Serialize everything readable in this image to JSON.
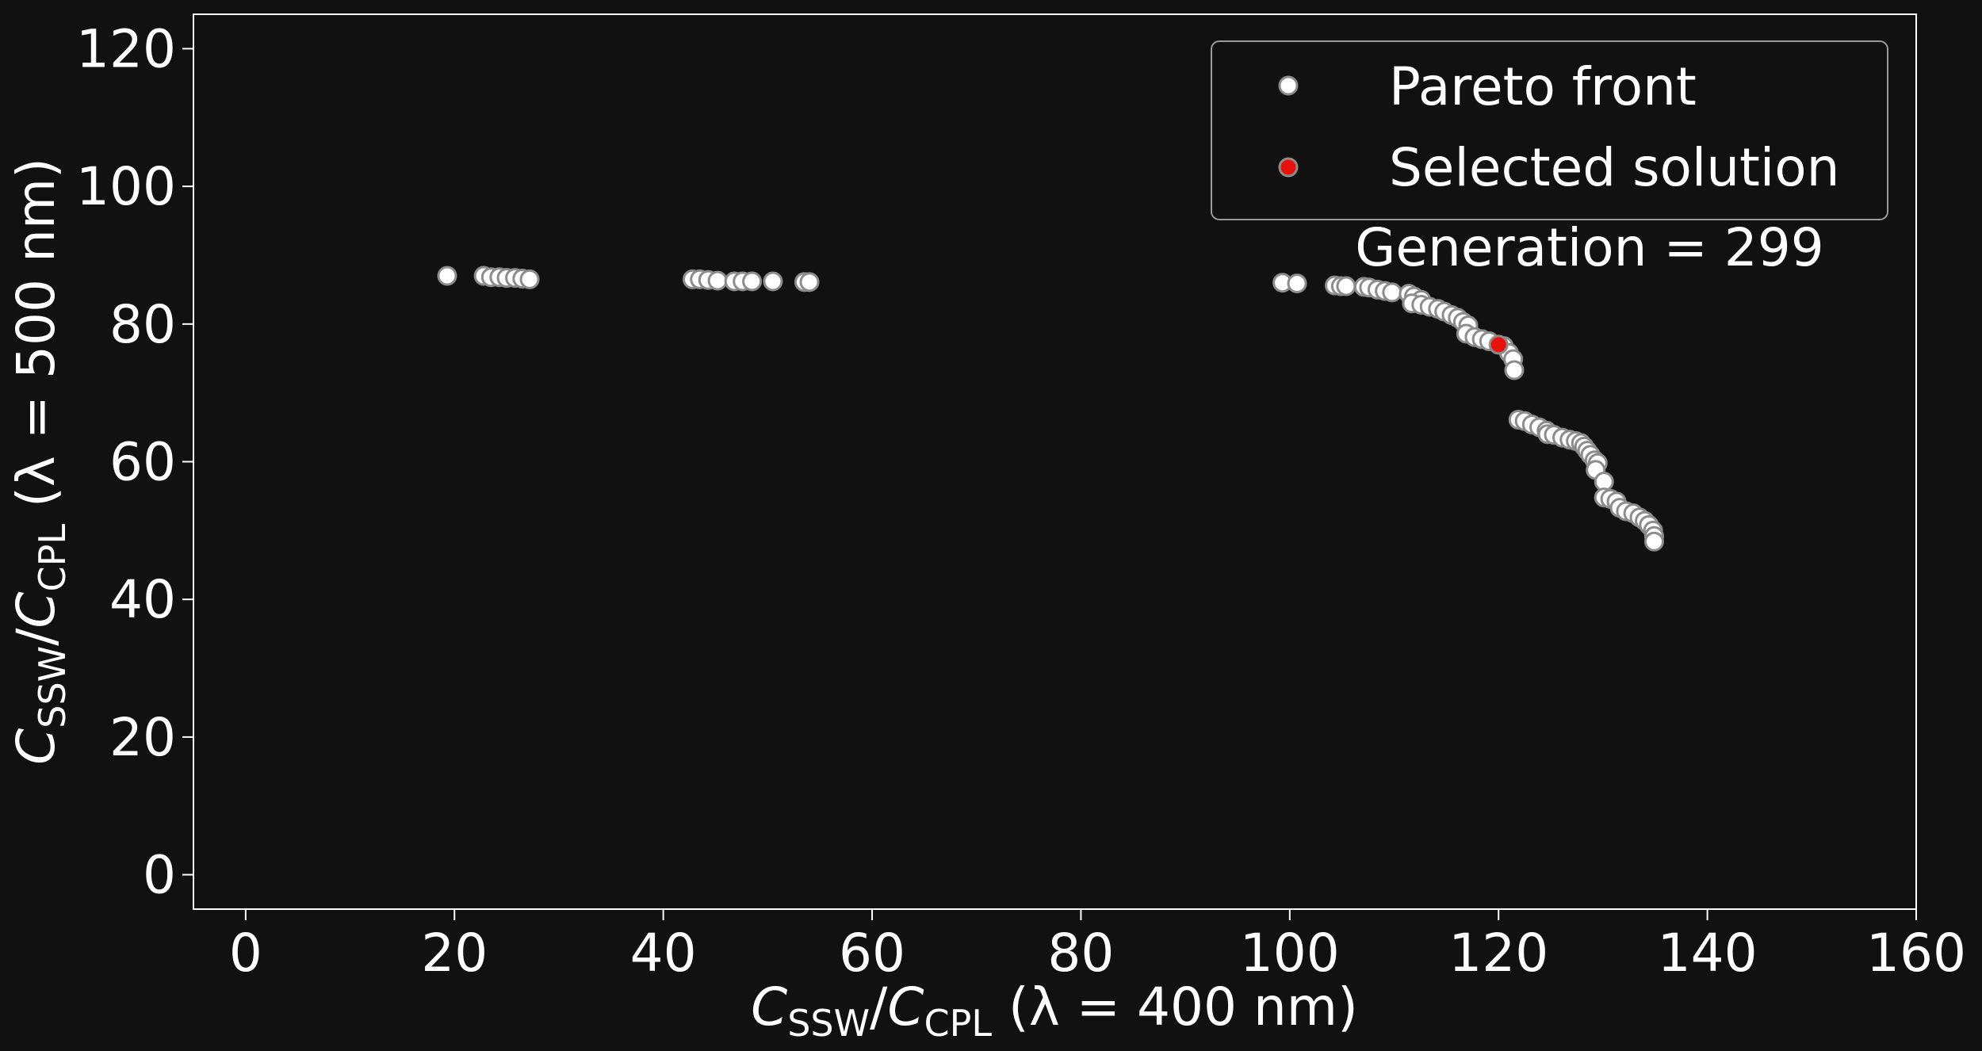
{
  "chart_data": {
    "type": "scatter",
    "background": "#111111",
    "foreground": "#ffffff",
    "xlabel": {
      "main": "C",
      "sub1": "SSW",
      "slash": "/",
      "main2": "C",
      "sub2": "CPL",
      "tail": " (λ = 400 nm)"
    },
    "ylabel": {
      "main": "C",
      "sub1": "SSW",
      "slash": "/",
      "main2": "C",
      "sub2": "CPL",
      "tail": " (λ = 500 nm)"
    },
    "xlim": [
      -5,
      160
    ],
    "ylim": [
      -5,
      125
    ],
    "xticks": [
      0,
      20,
      40,
      60,
      80,
      100,
      120,
      140,
      160
    ],
    "yticks": [
      0,
      20,
      40,
      60,
      80,
      100,
      120
    ],
    "annotation": "Generation = 299",
    "legend": {
      "placement": "top-right",
      "entries": [
        {
          "label": "Pareto front",
          "color": "#ffffff"
        },
        {
          "label": "Selected solution",
          "color": "#e8110b"
        }
      ]
    },
    "marker_edge_color": "#8c8c8c",
    "series": [
      {
        "name": "Pareto front",
        "color": "#ffffff",
        "points": [
          [
            19.3,
            87.0
          ],
          [
            22.8,
            87.0
          ],
          [
            23.5,
            86.8
          ],
          [
            24.3,
            86.8
          ],
          [
            25.0,
            86.7
          ],
          [
            25.8,
            86.7
          ],
          [
            26.5,
            86.6
          ],
          [
            27.2,
            86.5
          ],
          [
            42.8,
            86.5
          ],
          [
            43.5,
            86.5
          ],
          [
            44.3,
            86.4
          ],
          [
            45.2,
            86.3
          ],
          [
            46.8,
            86.2
          ],
          [
            47.6,
            86.2
          ],
          [
            48.5,
            86.2
          ],
          [
            50.5,
            86.2
          ],
          [
            53.5,
            86.1
          ],
          [
            54.0,
            86.1
          ],
          [
            99.3,
            86.0
          ],
          [
            100.7,
            85.9
          ],
          [
            104.3,
            85.6
          ],
          [
            104.9,
            85.5
          ],
          [
            105.4,
            85.5
          ],
          [
            107.1,
            85.4
          ],
          [
            107.6,
            85.3
          ],
          [
            108.4,
            85.0
          ],
          [
            109.1,
            84.8
          ],
          [
            109.8,
            84.6
          ],
          [
            111.4,
            84.4
          ],
          [
            111.9,
            84.0
          ],
          [
            112.6,
            83.5
          ],
          [
            111.7,
            83.0
          ],
          [
            112.6,
            82.8
          ],
          [
            113.4,
            82.5
          ],
          [
            114.2,
            82.2
          ],
          [
            114.8,
            81.8
          ],
          [
            115.5,
            81.3
          ],
          [
            116.1,
            80.9
          ],
          [
            116.6,
            80.3
          ],
          [
            117.1,
            79.8
          ],
          [
            116.9,
            78.6
          ],
          [
            117.7,
            78.1
          ],
          [
            118.4,
            77.8
          ],
          [
            119.1,
            77.5
          ],
          [
            120.5,
            76.8
          ],
          [
            121.0,
            75.8
          ],
          [
            121.4,
            74.9
          ],
          [
            121.5,
            73.3
          ],
          [
            121.9,
            66.1
          ],
          [
            122.5,
            65.9
          ],
          [
            123.2,
            65.4
          ],
          [
            123.9,
            65.0
          ],
          [
            124.6,
            64.5
          ],
          [
            124.7,
            64.0
          ],
          [
            125.3,
            63.9
          ],
          [
            126.1,
            63.5
          ],
          [
            126.8,
            63.2
          ],
          [
            127.4,
            63.0
          ],
          [
            127.9,
            62.7
          ],
          [
            128.2,
            62.2
          ],
          [
            128.5,
            61.6
          ],
          [
            128.8,
            61.0
          ],
          [
            129.2,
            60.2
          ],
          [
            129.5,
            59.8
          ],
          [
            129.3,
            58.8
          ],
          [
            130.1,
            57.1
          ],
          [
            130.1,
            54.8
          ],
          [
            130.7,
            54.6
          ],
          [
            131.3,
            54.2
          ],
          [
            131.6,
            53.3
          ],
          [
            132.2,
            52.8
          ],
          [
            132.9,
            52.5
          ],
          [
            133.5,
            51.9
          ],
          [
            134.0,
            51.4
          ],
          [
            134.4,
            50.8
          ],
          [
            134.8,
            50.0
          ],
          [
            134.9,
            49.2
          ],
          [
            134.9,
            48.4
          ]
        ]
      },
      {
        "name": "Selected solution",
        "color": "#e8110b",
        "points": [
          [
            120.0,
            77.0
          ]
        ]
      }
    ]
  }
}
